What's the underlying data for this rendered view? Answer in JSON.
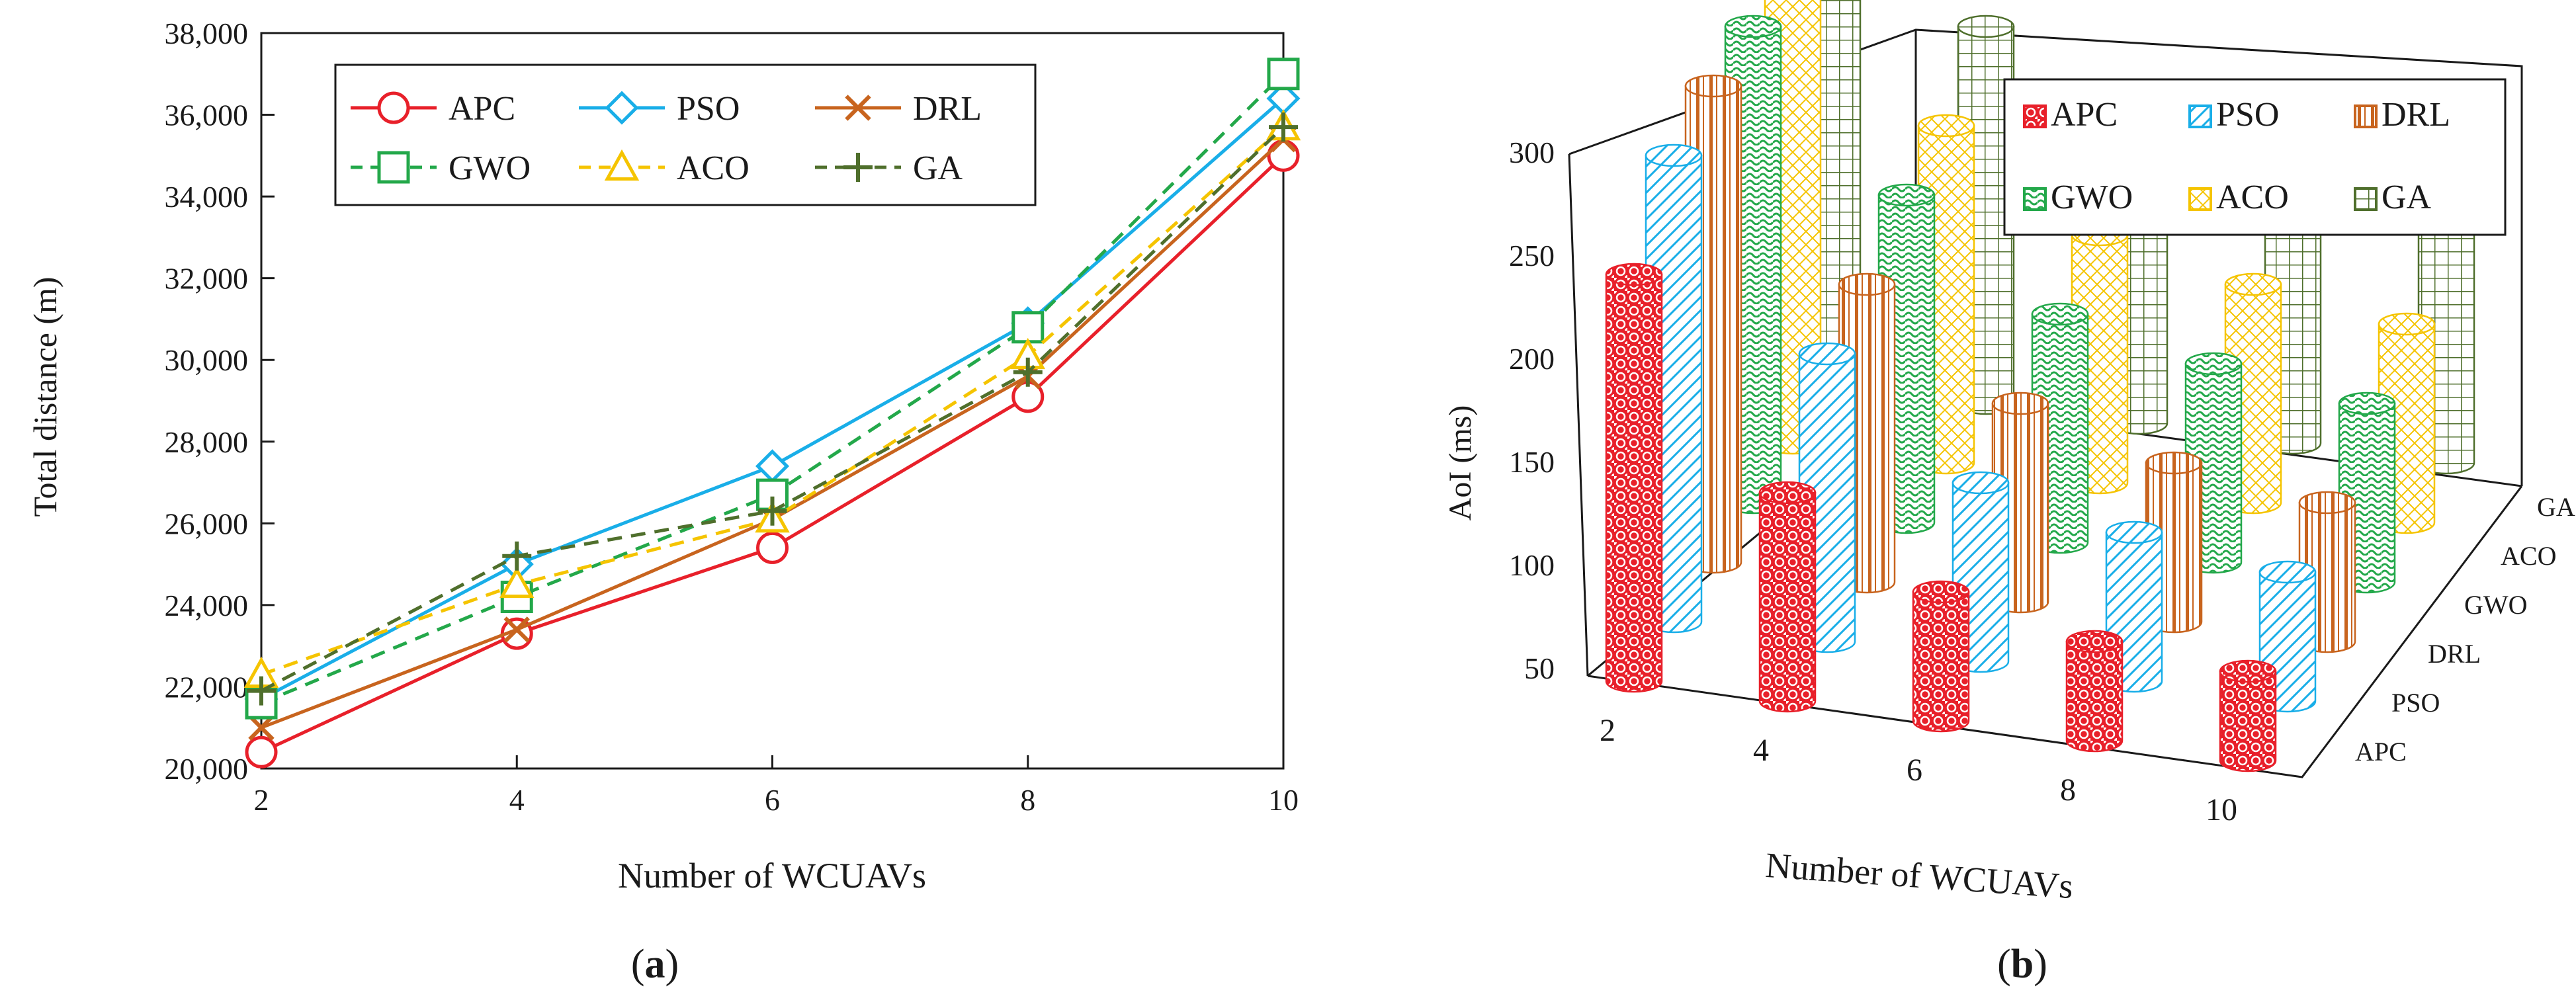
{
  "colors": {
    "APC": "#e8202a",
    "PSO": "#19aee8",
    "DRL": "#c8641e",
    "GWO": "#23a84a",
    "ACO": "#f5c400",
    "GA": "#4f6f2c"
  },
  "panel_labels": {
    "a": "a",
    "b": "b"
  },
  "chart_data": [
    {
      "type": "line",
      "panel": "(a)",
      "xlabel": "Number of WCUAVs",
      "ylabel": "Total distance (m)",
      "x": [
        2,
        4,
        6,
        8,
        10
      ],
      "x_tick_labels": [
        "2",
        "4",
        "6",
        "8",
        "10"
      ],
      "ylim": [
        20000,
        38000
      ],
      "y_ticks": [
        20000,
        22000,
        24000,
        26000,
        28000,
        30000,
        32000,
        34000,
        36000,
        38000
      ],
      "y_tick_labels": [
        "20,000",
        "22,000",
        "24,000",
        "26,000",
        "28,000",
        "30,000",
        "32,000",
        "34,000",
        "36,000",
        "38,000"
      ],
      "grid": false,
      "legend": "top-left",
      "series": [
        {
          "name": "APC",
          "marker": "circle",
          "dash": "solid",
          "values": [
            20400,
            23300,
            25400,
            29100,
            35000
          ]
        },
        {
          "name": "PSO",
          "marker": "diamond",
          "dash": "solid",
          "values": [
            21700,
            25000,
            27400,
            30900,
            36400
          ]
        },
        {
          "name": "DRL",
          "marker": "x",
          "dash": "solid",
          "values": [
            21000,
            23400,
            26100,
            29600,
            35400
          ]
        },
        {
          "name": "GWO",
          "marker": "square",
          "dash": "dashed",
          "values": [
            21600,
            24200,
            26700,
            30800,
            37000
          ]
        },
        {
          "name": "ACO",
          "marker": "triangle",
          "dash": "dashed",
          "values": [
            22300,
            24500,
            26100,
            30100,
            35700
          ]
        },
        {
          "name": "GA",
          "marker": "plus",
          "dash": "dashed",
          "values": [
            21900,
            25200,
            26300,
            29700,
            35700
          ]
        }
      ]
    },
    {
      "type": "bar",
      "style": "3d-cylinder",
      "panel": "(b)",
      "xlabel": "Number of WCUAVs",
      "ylabel": "AoI (ms)",
      "categories": [
        "2",
        "4",
        "6",
        "8",
        "10"
      ],
      "depth_labels": [
        "APC",
        "PSO",
        "DRL",
        "GWO",
        "ACO",
        "GA"
      ],
      "ylim": [
        50,
        300
      ],
      "y_ticks": [
        50,
        100,
        150,
        200,
        250,
        300
      ],
      "y_tick_labels": [
        "50",
        "100",
        "150",
        "200",
        "250",
        "300"
      ],
      "legend": "top-right",
      "series": [
        {
          "name": "APC",
          "values": [
            255,
            155,
            115,
            100,
            95
          ]
        },
        {
          "name": "PSO",
          "values": [
            285,
            195,
            140,
            125,
            115
          ]
        },
        {
          "name": "DRL",
          "values": [
            290,
            200,
            150,
            130,
            120
          ]
        },
        {
          "name": "GWO",
          "values": [
            290,
            215,
            165,
            150,
            140
          ]
        },
        {
          "name": "ACO",
          "values": [
            290,
            220,
            175,
            160,
            150
          ]
        },
        {
          "name": "GA",
          "values": [
            300,
            240,
            195,
            180,
            175
          ]
        }
      ]
    }
  ]
}
